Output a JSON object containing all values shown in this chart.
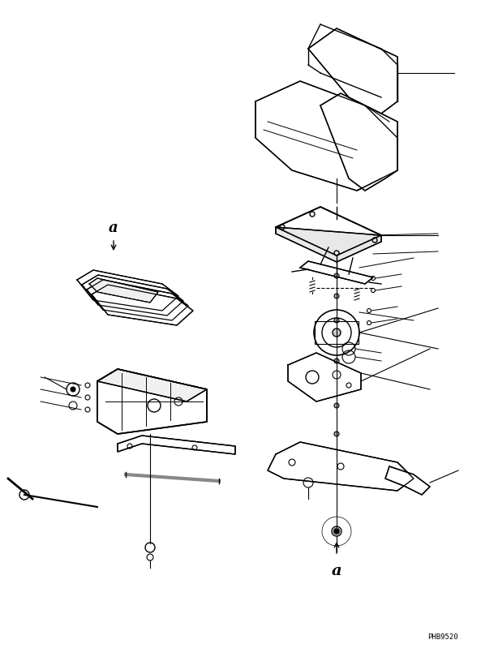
{
  "bg_color": "#ffffff",
  "line_color": "#000000",
  "fig_width": 5.93,
  "fig_height": 8.1,
  "dpi": 100,
  "watermark": "PHB9520",
  "label_a_bottom": "a",
  "label_a_left": "a"
}
